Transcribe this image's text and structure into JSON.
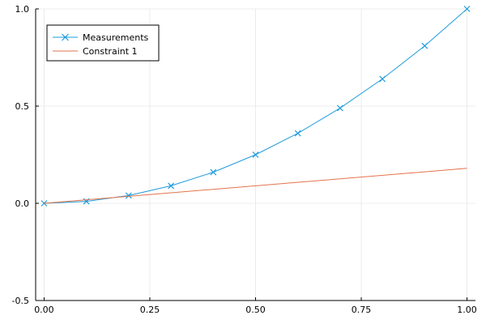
{
  "chart_data": {
    "type": "line",
    "title": "",
    "xlabel": "",
    "ylabel": "",
    "xlim": [
      -0.02,
      1.02
    ],
    "ylim": [
      -0.5,
      1.0
    ],
    "xticks": [
      0,
      0.25,
      0.5,
      0.75,
      1.0
    ],
    "xtick_labels": [
      "0.00",
      "0.25",
      "0.50",
      "0.75",
      "1.00"
    ],
    "yticks": [
      -0.5,
      0,
      0.5,
      1.0
    ],
    "ytick_labels": [
      "-0.5",
      "0.0",
      "0.5",
      "1.0"
    ],
    "grid": true,
    "legend_position": "top-left",
    "series": [
      {
        "name": "Measurements",
        "color": "#1f9bdc",
        "marker": "x",
        "x": [
          0,
          0.1,
          0.2,
          0.3,
          0.4,
          0.5,
          0.6,
          0.7,
          0.8,
          0.9,
          1.0
        ],
        "y": [
          0,
          0.01,
          0.04,
          0.09,
          0.16,
          0.25,
          0.36,
          0.49,
          0.64,
          0.81,
          1.0
        ]
      },
      {
        "name": "Constraint 1",
        "color": "#e3734b",
        "marker": "none",
        "x": [
          0,
          1.0
        ],
        "y": [
          0,
          0.18
        ]
      }
    ]
  }
}
